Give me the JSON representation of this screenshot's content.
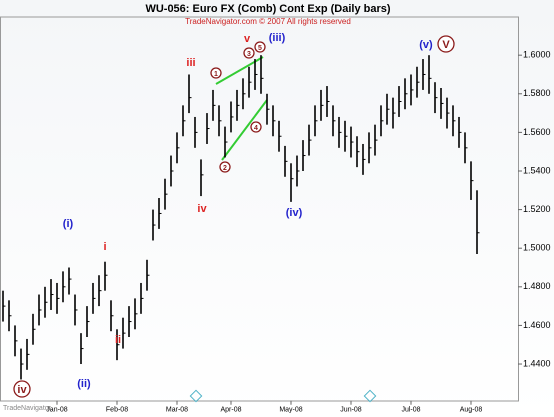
{
  "chart_data": {
    "type": "hlc",
    "title": "WU-056:  Euro FX (Comb) Cont Exp  (Daily bars)",
    "subtitle": "TradeNavigator.com © 2007 All rights reserved",
    "watermark": "TradeNavigator",
    "color": "#000000",
    "categories": [
      null,
      null,
      null,
      null,
      null,
      null,
      null,
      null,
      null,
      "Jan-08",
      null,
      null,
      null,
      null,
      null,
      null,
      null,
      null,
      null,
      "Feb-08",
      null,
      null,
      null,
      null,
      null,
      null,
      null,
      null,
      null,
      "Mar-08",
      null,
      null,
      null,
      null,
      null,
      null,
      null,
      null,
      "Apr-08",
      null,
      null,
      null,
      null,
      null,
      null,
      null,
      null,
      null,
      "May-08",
      null,
      null,
      null,
      null,
      null,
      null,
      null,
      null,
      null,
      "Jun-08",
      null,
      null,
      null,
      null,
      null,
      null,
      null,
      null,
      null,
      "Jul-08",
      null,
      null,
      null,
      null,
      null,
      null,
      null,
      null,
      null,
      "Aug-08",
      null
    ],
    "high": [
      1.478,
      1.473,
      1.46,
      1.448,
      1.453,
      1.466,
      1.476,
      1.48,
      1.484,
      1.482,
      1.488,
      1.49,
      1.476,
      1.456,
      1.47,
      1.482,
      1.486,
      1.493,
      1.473,
      1.458,
      1.464,
      1.47,
      1.474,
      1.482,
      1.494,
      1.52,
      1.526,
      1.536,
      1.548,
      1.56,
      1.574,
      1.59,
      1.568,
      1.546,
      1.57,
      1.582,
      1.574,
      1.563,
      1.576,
      1.582,
      1.588,
      1.594,
      1.598,
      1.6,
      1.58,
      1.574,
      1.566,
      1.553,
      1.544,
      1.548,
      1.556,
      1.564,
      1.574,
      1.582,
      1.584,
      1.574,
      1.568,
      1.566,
      1.563,
      1.558,
      1.554,
      1.56,
      1.564,
      1.574,
      1.58,
      1.578,
      1.584,
      1.588,
      1.59,
      1.594,
      1.598,
      1.6,
      1.586,
      1.583,
      1.578,
      1.574,
      1.568,
      1.56,
      1.545,
      1.53
    ],
    "low": [
      1.462,
      1.457,
      1.444,
      1.432,
      1.437,
      1.45,
      1.46,
      1.464,
      1.468,
      1.466,
      1.472,
      1.476,
      1.46,
      1.44,
      1.454,
      1.466,
      1.47,
      1.478,
      1.457,
      1.442,
      1.448,
      1.454,
      1.458,
      1.466,
      1.478,
      1.504,
      1.51,
      1.52,
      1.532,
      1.544,
      1.558,
      1.57,
      1.552,
      1.527,
      1.554,
      1.566,
      1.558,
      1.547,
      1.56,
      1.566,
      1.572,
      1.578,
      1.582,
      1.58,
      1.564,
      1.558,
      1.55,
      1.537,
      1.524,
      1.532,
      1.54,
      1.548,
      1.558,
      1.566,
      1.568,
      1.558,
      1.552,
      1.55,
      1.547,
      1.542,
      1.538,
      1.544,
      1.548,
      1.558,
      1.564,
      1.562,
      1.568,
      1.572,
      1.574,
      1.578,
      1.582,
      1.58,
      1.57,
      1.567,
      1.562,
      1.558,
      1.552,
      1.544,
      1.525,
      1.497
    ],
    "close": [
      1.47,
      1.465,
      1.452,
      1.44,
      1.445,
      1.458,
      1.468,
      1.472,
      1.476,
      1.474,
      1.48,
      1.484,
      1.468,
      1.448,
      1.462,
      1.474,
      1.478,
      1.486,
      1.465,
      1.45,
      1.456,
      1.462,
      1.466,
      1.474,
      1.486,
      1.512,
      1.518,
      1.528,
      1.54,
      1.552,
      1.566,
      1.578,
      1.56,
      1.538,
      1.562,
      1.574,
      1.566,
      1.555,
      1.568,
      1.574,
      1.58,
      1.586,
      1.59,
      1.588,
      1.572,
      1.566,
      1.558,
      1.545,
      1.536,
      1.54,
      1.548,
      1.556,
      1.566,
      1.574,
      1.576,
      1.566,
      1.56,
      1.558,
      1.555,
      1.55,
      1.546,
      1.552,
      1.556,
      1.566,
      1.572,
      1.57,
      1.576,
      1.58,
      1.582,
      1.586,
      1.59,
      1.588,
      1.578,
      1.575,
      1.57,
      1.566,
      1.56,
      1.552,
      1.535,
      1.508
    ],
    "ylim": [
      1.421,
      1.619
    ],
    "yticks": [
      {
        "value": 1.44,
        "label": "1.4400"
      },
      {
        "value": 1.46,
        "label": "1.4600"
      },
      {
        "value": 1.48,
        "label": "1.4800"
      },
      {
        "value": 1.5,
        "label": "1.5000"
      },
      {
        "value": 1.52,
        "label": "1.5200"
      },
      {
        "value": 1.54,
        "label": "1.5400"
      },
      {
        "value": 1.56,
        "label": "1.5600"
      },
      {
        "value": 1.58,
        "label": "1.5800"
      },
      {
        "value": 1.6,
        "label": "1.6000"
      }
    ],
    "grid": false,
    "annotations": [
      {
        "text": "iv",
        "color": "#8b1a1a",
        "circled": true
      },
      {
        "text": "(i)",
        "color": "#2222cc"
      },
      {
        "text": "(ii)",
        "color": "#2222cc"
      },
      {
        "text": "i",
        "color": "#dd2222"
      },
      {
        "text": "ii",
        "color": "#dd2222"
      },
      {
        "text": "iii",
        "color": "#dd2222"
      },
      {
        "text": "iv",
        "color": "#dd2222"
      },
      {
        "text": "v",
        "color": "#dd2222"
      },
      {
        "text": "(iii)",
        "color": "#2222cc"
      },
      {
        "text": "(iv)",
        "color": "#2222cc"
      },
      {
        "text": "(v)",
        "color": "#2222cc"
      },
      {
        "text": "V",
        "color": "#8b1a1a",
        "circled": true
      },
      {
        "text": "1",
        "color": "#8b1a1a",
        "circled": true
      },
      {
        "text": "2",
        "color": "#8b1a1a",
        "circled": true
      },
      {
        "text": "3",
        "color": "#8b1a1a",
        "circled": true
      },
      {
        "text": "4",
        "color": "#8b1a1a",
        "circled": true
      },
      {
        "text": "5",
        "color": "#8b1a1a",
        "circled": true
      }
    ]
  }
}
